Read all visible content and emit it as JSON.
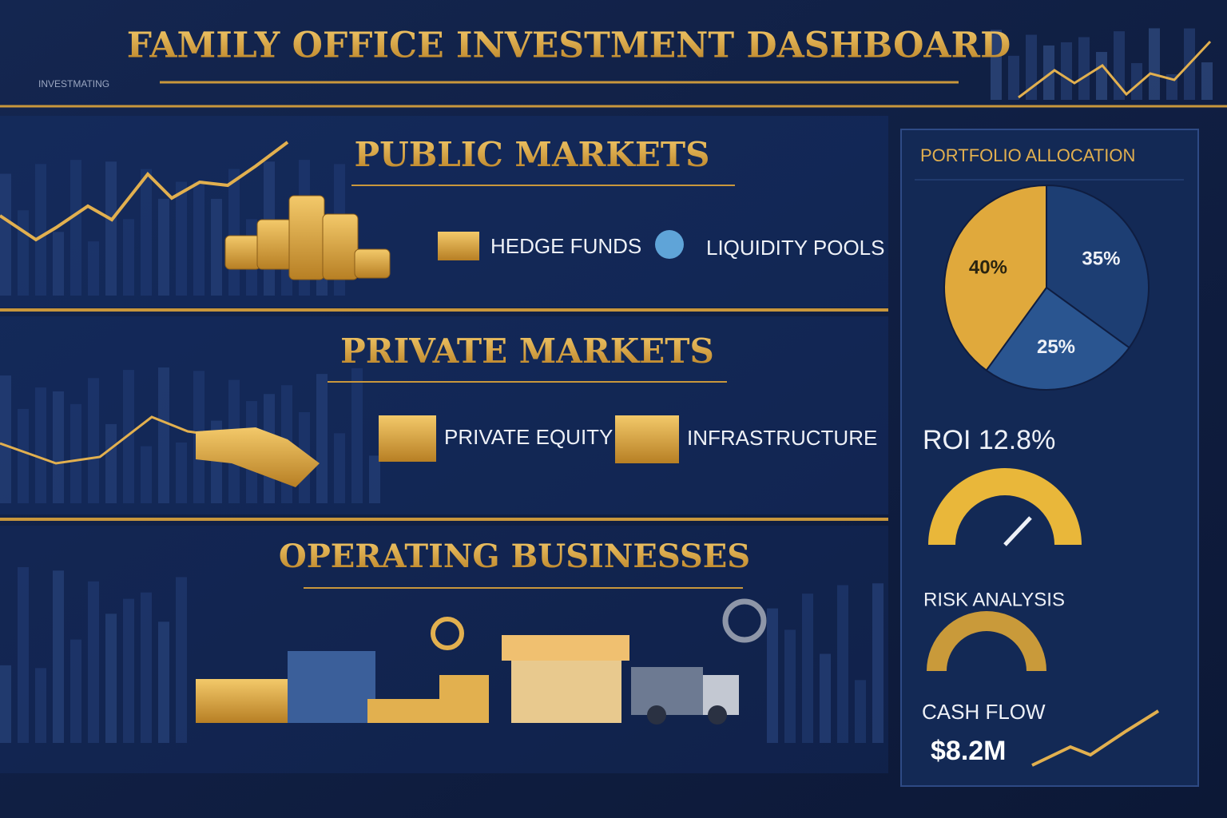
{
  "header": {
    "title": "FAMILY OFFICE INVESTMENT DASHBOARD",
    "tag": "INVESTMATING"
  },
  "sections": [
    {
      "title": "PUBLIC MARKETS",
      "items": [
        "HEDGE FUNDS",
        "LIQUIDITY POOLS"
      ]
    },
    {
      "title": "PRIVATE MARKETS",
      "items": [
        "PRIVATE EQUITY",
        "INFRASTRUCTURE"
      ]
    },
    {
      "title": "OPERATING BUSINESSES",
      "items": []
    }
  ],
  "sidebar": {
    "allocation": {
      "type": "pie",
      "title": "PORTFOLIO ALLOCATION",
      "values": [
        35,
        25,
        40
      ],
      "value_labels": [
        "35%",
        "25%",
        "40%"
      ],
      "colors": [
        "#1d3e73",
        "#2a5590",
        "#e0a93c"
      ]
    },
    "roi": "ROI 12.8%",
    "risk": "RISK ANALYSIS",
    "cash_flow": {
      "label": "CASH FLOW",
      "value": "$8.2M"
    }
  }
}
